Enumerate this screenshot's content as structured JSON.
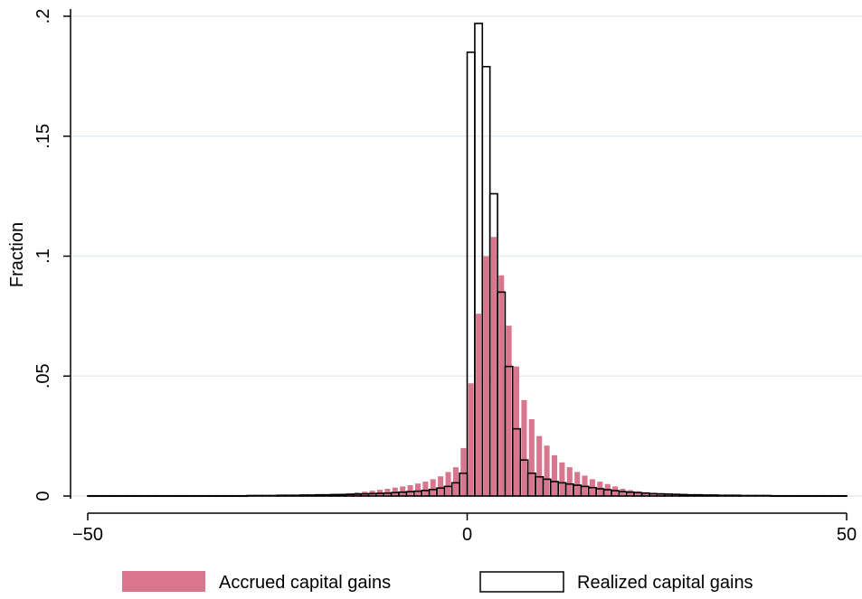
{
  "chart_data": {
    "type": "bar",
    "title": "",
    "xlabel": "",
    "ylabel": "Fraction",
    "xlim": [
      -50,
      50
    ],
    "ylim": [
      0,
      0.2
    ],
    "bin_width": 1,
    "x_ticks": [
      -50,
      0,
      50
    ],
    "x_tick_labels": [
      "−50",
      "0",
      "50"
    ],
    "y_ticks": [
      0,
      0.05,
      0.1,
      0.15,
      0.2
    ],
    "y_tick_labels": [
      "0",
      ".05",
      ".1",
      ".15",
      ".2"
    ],
    "grid": true,
    "legend_position": "bottom",
    "series": [
      {
        "name": "Accrued capital gains",
        "style": "filled",
        "color": "#d9768e",
        "bin_starts": [
          -20,
          -19,
          -18,
          -17,
          -16,
          -15,
          -14,
          -13,
          -12,
          -11,
          -10,
          -9,
          -8,
          -7,
          -6,
          -5,
          -4,
          -3,
          -2,
          -1,
          0,
          1,
          2,
          3,
          4,
          5,
          6,
          7,
          8,
          9,
          10,
          11,
          12,
          13,
          14,
          15,
          16,
          17,
          18,
          19,
          20,
          21,
          22,
          23,
          24,
          25,
          26,
          27,
          28,
          29,
          30
        ],
        "values": [
          0.0005,
          0.0006,
          0.0008,
          0.001,
          0.0012,
          0.0015,
          0.0018,
          0.0022,
          0.0026,
          0.003,
          0.0035,
          0.004,
          0.0045,
          0.0052,
          0.006,
          0.007,
          0.0082,
          0.01,
          0.012,
          0.02,
          0.047,
          0.076,
          0.1,
          0.108,
          0.092,
          0.071,
          0.054,
          0.04,
          0.032,
          0.025,
          0.021,
          0.017,
          0.014,
          0.012,
          0.01,
          0.0085,
          0.007,
          0.006,
          0.005,
          0.004,
          0.003,
          0.0025,
          0.002,
          0.0016,
          0.0013,
          0.001,
          0.0008,
          0.0006,
          0.0005,
          0.0004,
          0.0003
        ]
      },
      {
        "name": "Realized capital gains",
        "style": "outline",
        "color": "#000000",
        "bin_starts": [
          -50,
          -49,
          -48,
          -47,
          -46,
          -45,
          -44,
          -43,
          -42,
          -41,
          -40,
          -39,
          -38,
          -37,
          -36,
          -35,
          -34,
          -33,
          -32,
          -31,
          -30,
          -29,
          -28,
          -27,
          -26,
          -25,
          -24,
          -23,
          -22,
          -21,
          -20,
          -19,
          -18,
          -17,
          -16,
          -15,
          -14,
          -13,
          -12,
          -11,
          -10,
          -9,
          -8,
          -7,
          -6,
          -5,
          -4,
          -3,
          -2,
          -1,
          0,
          1,
          2,
          3,
          4,
          5,
          6,
          7,
          8,
          9,
          10,
          11,
          12,
          13,
          14,
          15,
          16,
          17,
          18,
          19,
          20,
          21,
          22,
          23,
          24,
          25,
          26,
          27,
          28,
          29,
          30,
          31,
          32,
          33,
          34,
          35,
          36,
          37,
          38,
          39,
          40,
          41,
          42,
          43,
          44,
          45,
          46,
          47,
          48,
          49
        ],
        "values": [
          0.0001,
          0.0001,
          0.0001,
          0.0001,
          0.0001,
          0.0001,
          0.0001,
          0.0001,
          0.0001,
          0.0001,
          0.0001,
          0.0001,
          0.0001,
          0.0001,
          0.0001,
          0.0001,
          0.0001,
          0.0001,
          0.0001,
          0.0001,
          0.0001,
          0.0002,
          0.0002,
          0.0002,
          0.0002,
          0.0003,
          0.0003,
          0.0003,
          0.0004,
          0.0004,
          0.0005,
          0.0005,
          0.0006,
          0.0006,
          0.0007,
          0.0008,
          0.0009,
          0.001,
          0.0011,
          0.0012,
          0.0014,
          0.0016,
          0.0018,
          0.002,
          0.0023,
          0.0027,
          0.0033,
          0.004,
          0.0055,
          0.0095,
          0.185,
          0.197,
          0.179,
          0.126,
          0.085,
          0.054,
          0.028,
          0.015,
          0.0095,
          0.008,
          0.007,
          0.006,
          0.0055,
          0.005,
          0.0045,
          0.004,
          0.0035,
          0.003,
          0.0026,
          0.0022,
          0.0018,
          0.0016,
          0.0014,
          0.0012,
          0.001,
          0.0009,
          0.0008,
          0.0007,
          0.0006,
          0.0005,
          0.0005,
          0.0004,
          0.0004,
          0.0003,
          0.0003,
          0.0003,
          0.0002,
          0.0002,
          0.0002,
          0.0002,
          0.0001,
          0.0001,
          0.0001,
          0.0001,
          0.0001,
          0.0001,
          0.0001,
          0.0001,
          0.0001,
          0.0001
        ]
      }
    ]
  }
}
